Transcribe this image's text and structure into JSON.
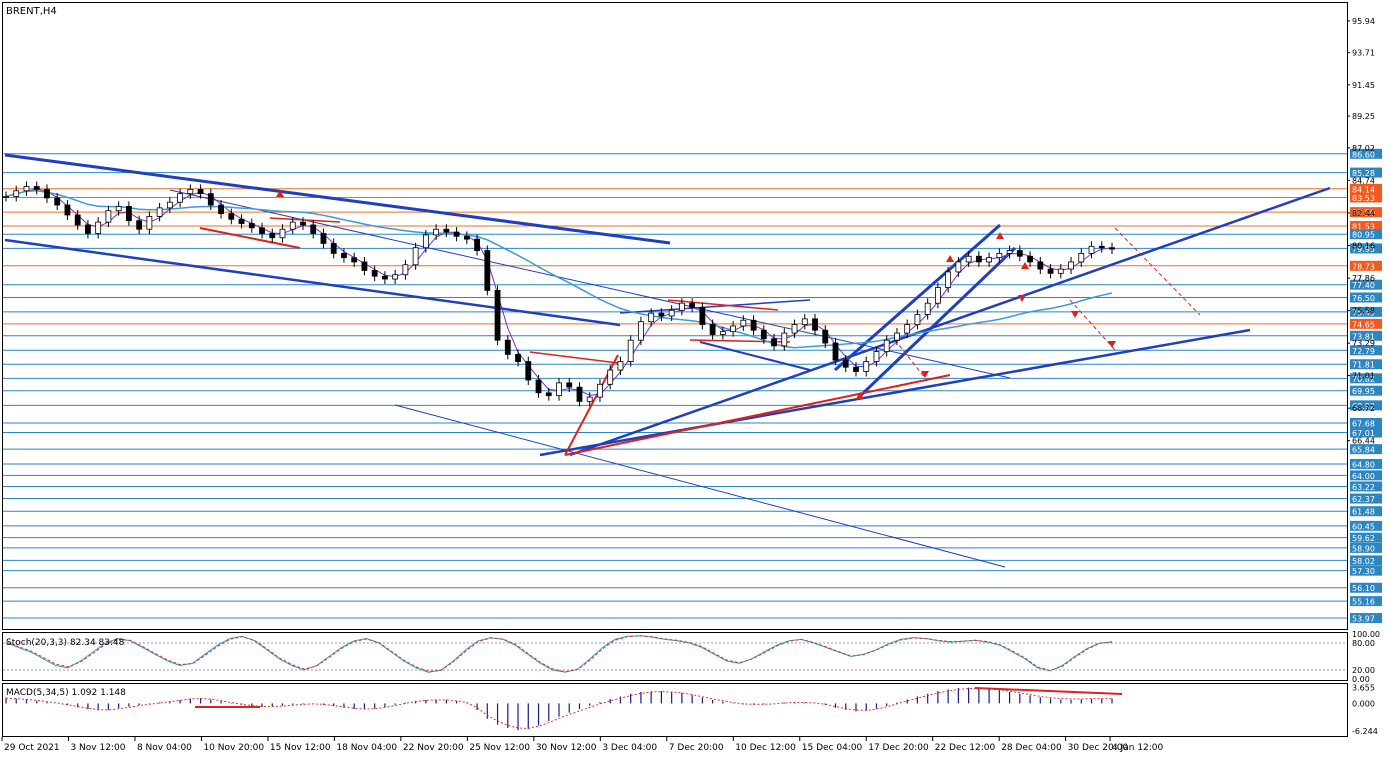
{
  "symbol_label": "BRENT,H4",
  "stoch_label": "Stoch(20,3,3) 82.34 83.48",
  "macd_label": "MACD(5,34,5) 1.092 1.148",
  "colors": {
    "background": "#ffffff",
    "axis": "#000000",
    "level_line": "#2e86c1",
    "level_line_orange": "#e8702a",
    "level_label_blue": "#2e86c1",
    "level_label_orange": "#f05a1e",
    "trend_blue": "#1f3fbf",
    "trend_red": "#e0201b",
    "price": "#000000",
    "ma": "#3a9ad9",
    "stoch_main": "#2aa8c8",
    "stoch_signal": "#e03030",
    "macd_hist": "#1a1a8a",
    "macd_signal": "#e03030"
  },
  "chart_data": [
    {
      "type": "line",
      "title": "BRENT,H4",
      "x_ticks": [
        "29 Oct 2021",
        "3 Nov 12:00",
        "8 Nov 04:00",
        "10 Nov 20:00",
        "15 Nov 12:00",
        "18 Nov 04:00",
        "22 Nov 20:00",
        "25 Nov 12:00",
        "30 Nov 12:00",
        "3 Dec 04:00",
        "7 Dec 20:00",
        "10 Dec 12:00",
        "15 Dec 04:00",
        "17 Dec 20:00",
        "22 Dec 12:00",
        "28 Dec 04:00",
        "30 Dec 20:00",
        "4 Jan 12:00"
      ],
      "y_ticks": [
        "95.94",
        "93.71",
        "91.45",
        "89.25",
        "87.02",
        "84.74",
        "82.44",
        "80.16",
        "77.86",
        "75.58",
        "73.29",
        "71.01",
        "68.72",
        "66.44"
      ],
      "ylim": [
        53.2,
        97.2
      ],
      "price_levels": [
        {
          "value": "86.60",
          "color": "blue"
        },
        {
          "value": "85.28",
          "color": "blue"
        },
        {
          "value": "84.14",
          "color": "orange"
        },
        {
          "value": "83.53",
          "color": "orange"
        },
        {
          "value": "82.50",
          "color": "orange"
        },
        {
          "value": "81.53",
          "color": "orange"
        },
        {
          "value": "80.95",
          "color": "blue"
        },
        {
          "value": "79.95",
          "color": "blue"
        },
        {
          "value": "78.73",
          "color": "orange"
        },
        {
          "value": "77.40",
          "color": "blue"
        },
        {
          "value": "76.50",
          "color": "blue"
        },
        {
          "value": "75.49",
          "color": "blue"
        },
        {
          "value": "74.65",
          "color": "orange"
        },
        {
          "value": "73.81",
          "color": "blue"
        },
        {
          "value": "72.79",
          "color": "blue"
        },
        {
          "value": "71.81",
          "color": "blue"
        },
        {
          "value": "70.82",
          "color": "blue"
        },
        {
          "value": "69.95",
          "color": "blue"
        },
        {
          "value": "68.92",
          "color": "blue"
        },
        {
          "value": "67.68",
          "color": "blue"
        },
        {
          "value": "67.01",
          "color": "blue"
        },
        {
          "value": "65.84",
          "color": "blue"
        },
        {
          "value": "64.80",
          "color": "blue"
        },
        {
          "value": "64.00",
          "color": "blue"
        },
        {
          "value": "63.22",
          "color": "blue"
        },
        {
          "value": "62.37",
          "color": "blue"
        },
        {
          "value": "61.48",
          "color": "blue"
        },
        {
          "value": "60.45",
          "color": "blue"
        },
        {
          "value": "59.62",
          "color": "blue"
        },
        {
          "value": "58.90",
          "color": "blue"
        },
        {
          "value": "58.02",
          "color": "blue"
        },
        {
          "value": "57.30",
          "color": "blue"
        },
        {
          "value": "56.10",
          "color": "blue"
        },
        {
          "value": "55.16",
          "color": "blue"
        },
        {
          "value": "53.97",
          "color": "blue"
        }
      ],
      "series": [
        {
          "x": [
            0,
            2,
            4,
            6,
            8,
            10,
            12,
            14,
            16,
            18,
            20,
            22,
            24,
            26,
            28,
            30,
            32,
            34,
            36,
            38,
            40,
            42,
            44,
            46,
            48,
            50,
            52,
            54,
            56,
            58,
            60,
            62,
            64,
            66,
            68,
            70,
            72,
            74,
            76,
            78,
            80,
            82,
            84,
            86,
            88,
            90,
            92,
            94,
            96,
            98,
            100,
            102,
            104,
            106,
            108,
            110,
            112,
            114,
            116,
            118,
            120,
            122,
            124,
            126,
            128,
            130,
            132,
            134,
            136,
            138,
            140,
            142,
            144,
            146,
            148,
            150,
            152,
            154,
            156,
            158,
            160,
            162,
            164,
            166,
            168,
            170,
            172,
            174,
            176,
            178,
            180,
            182,
            184,
            186,
            188,
            190,
            192,
            194,
            196,
            198,
            200,
            202,
            204,
            206,
            208,
            210,
            212,
            214,
            216
          ],
          "values": [
            83.6,
            84.0,
            84.3,
            84.1,
            83.5,
            83.0,
            82.3,
            81.6,
            81.0,
            81.8,
            82.6,
            82.9,
            81.9,
            81.3,
            82.2,
            82.8,
            83.2,
            83.8,
            84.1,
            83.8,
            83.0,
            82.4,
            82.0,
            81.7,
            81.4,
            81.0,
            80.7,
            81.3,
            81.8,
            81.6,
            81.0,
            80.3,
            79.6,
            79.3,
            79.0,
            78.4,
            78.0,
            77.8,
            78.1,
            78.8,
            80.0,
            80.9,
            81.3,
            81.1,
            80.8,
            80.6,
            79.8,
            77.0,
            73.5,
            72.5,
            72.0,
            70.7,
            69.8,
            69.6,
            70.5,
            70.2,
            69.2,
            69.5,
            70.4,
            71.4,
            72.0,
            73.5,
            74.8,
            75.4,
            75.2,
            75.6,
            76.1,
            75.8,
            74.6,
            73.9,
            74.1,
            74.5,
            74.9,
            74.2,
            73.6,
            73.1,
            74.0,
            74.6,
            75.0,
            74.2,
            73.3,
            72.1,
            71.6,
            71.3,
            72.0,
            72.7,
            73.5,
            74.0,
            74.6,
            75.3,
            76.1,
            77.2,
            78.3,
            79.0,
            79.4,
            79.0,
            79.3,
            79.6,
            79.8,
            79.4,
            79.0,
            78.5,
            78.2,
            78.5,
            79.0,
            79.6,
            80.1,
            80.0,
            79.9
          ]
        }
      ]
    },
    {
      "type": "line",
      "title": "Stoch(20,3,3) 82.34 83.48",
      "y_ticks": [
        "100.00",
        "80.00",
        "20.00",
        "0.00"
      ],
      "ylim": [
        0,
        100
      ],
      "series": [
        {
          "values": [
            82,
            70,
            60,
            45,
            30,
            25,
            40,
            60,
            80,
            90,
            85,
            70,
            55,
            40,
            30,
            35,
            55,
            75,
            90,
            95,
            85,
            65,
            45,
            30,
            20,
            30,
            50,
            70,
            85,
            90,
            80,
            60,
            40,
            25,
            15,
            20,
            40,
            65,
            85,
            92,
            88,
            75,
            55,
            35,
            20,
            15,
            22,
            45,
            70,
            88,
            95,
            96,
            93,
            88,
            85,
            80,
            70,
            55,
            40,
            35,
            45,
            60,
            75,
            85,
            88,
            80,
            70,
            60,
            50,
            55,
            65,
            78,
            88,
            92,
            90,
            85,
            82,
            84,
            86,
            82,
            75,
            60,
            45,
            25,
            18,
            30,
            50,
            68,
            80,
            82
          ]
        },
        {
          "values": [
            80,
            72,
            62,
            48,
            33,
            27,
            38,
            57,
            77,
            88,
            86,
            72,
            57,
            42,
            32,
            34,
            52,
            72,
            88,
            94,
            86,
            67,
            47,
            32,
            22,
            29,
            48,
            68,
            83,
            89,
            81,
            62,
            42,
            27,
            17,
            19,
            38,
            62,
            83,
            91,
            89,
            77,
            57,
            37,
            22,
            16,
            21,
            42,
            67,
            86,
            94,
            96,
            94,
            89,
            86,
            81,
            72,
            57,
            42,
            36,
            44,
            58,
            73,
            84,
            88,
            81,
            71,
            61,
            51,
            54,
            64,
            76,
            87,
            91,
            90,
            86,
            83,
            84,
            86,
            83,
            76,
            62,
            47,
            27,
            19,
            28,
            48,
            66,
            79,
            83
          ]
        }
      ]
    },
    {
      "type": "bar",
      "title": "MACD(5,34,5) 1.092 1.148",
      "y_ticks": [
        "3.655",
        "0.000",
        "-6.244"
      ],
      "ylim": [
        -7.2,
        4.2
      ],
      "series": [
        {
          "name": "histogram",
          "values": [
            1.3,
            1.1,
            0.9,
            0.6,
            0.3,
            0.0,
            -0.4,
            -0.9,
            -1.3,
            -1.6,
            -1.5,
            -1.1,
            -0.7,
            -0.4,
            -0.1,
            0.2,
            0.5,
            0.8,
            1.1,
            1.2,
            0.9,
            0.5,
            0.1,
            -0.3,
            -0.6,
            -0.8,
            -0.7,
            -0.5,
            -0.3,
            -0.2,
            -0.1,
            -0.3,
            -0.6,
            -1.0,
            -1.3,
            -1.4,
            -1.2,
            -0.8,
            -0.3,
            0.2,
            0.6,
            0.8,
            0.9,
            0.8,
            0.5,
            0.1,
            -1.5,
            -3.5,
            -4.8,
            -5.6,
            -6.1,
            -5.8,
            -5.0,
            -4.0,
            -3.0,
            -2.1,
            -1.3,
            -0.5,
            0.3,
            1.0,
            1.6,
            2.2,
            2.6,
            2.8,
            2.8,
            2.7,
            2.4,
            1.9,
            1.3,
            0.8,
            0.4,
            0.1,
            -0.2,
            -0.3,
            -0.2,
            0.0,
            0.2,
            0.3,
            0.2,
            0.0,
            -0.4,
            -1.0,
            -1.5,
            -1.8,
            -1.7,
            -1.2,
            -0.6,
            0.2,
            0.9,
            1.6,
            2.2,
            2.8,
            3.2,
            3.5,
            3.6,
            3.5,
            3.3,
            3.0,
            2.6,
            2.2,
            1.8,
            1.4,
            1.1,
            0.9,
            0.8,
            0.9,
            1.0,
            1.1,
            1.1
          ]
        },
        {
          "name": "signal",
          "values": [
            1.2,
            1.1,
            0.9,
            0.7,
            0.4,
            0.1,
            -0.3,
            -0.7,
            -1.1,
            -1.4,
            -1.5,
            -1.2,
            -0.9,
            -0.5,
            -0.2,
            0.1,
            0.4,
            0.7,
            1.0,
            1.1,
            1.0,
            0.6,
            0.2,
            -0.2,
            -0.5,
            -0.7,
            -0.7,
            -0.6,
            -0.4,
            -0.2,
            -0.1,
            -0.2,
            -0.5,
            -0.8,
            -1.1,
            -1.3,
            -1.2,
            -0.9,
            -0.5,
            0.0,
            0.4,
            0.7,
            0.8,
            0.8,
            0.6,
            0.2,
            -1.0,
            -2.7,
            -4.0,
            -5.0,
            -5.6,
            -5.7,
            -5.2,
            -4.4,
            -3.4,
            -2.5,
            -1.7,
            -0.9,
            -0.1,
            0.6,
            1.2,
            1.8,
            2.3,
            2.6,
            2.7,
            2.6,
            2.4,
            2.0,
            1.5,
            1.0,
            0.6,
            0.2,
            -0.1,
            -0.2,
            -0.2,
            -0.1,
            0.1,
            0.2,
            0.2,
            0.1,
            -0.2,
            -0.7,
            -1.2,
            -1.5,
            -1.6,
            -1.3,
            -0.8,
            -0.1,
            0.6,
            1.2,
            1.8,
            2.4,
            2.8,
            3.2,
            3.4,
            3.4,
            3.3,
            3.1,
            2.8,
            2.4,
            2.0,
            1.6,
            1.3,
            1.1,
            1.0,
            1.0,
            1.1,
            1.1,
            1.1
          ]
        }
      ]
    }
  ]
}
